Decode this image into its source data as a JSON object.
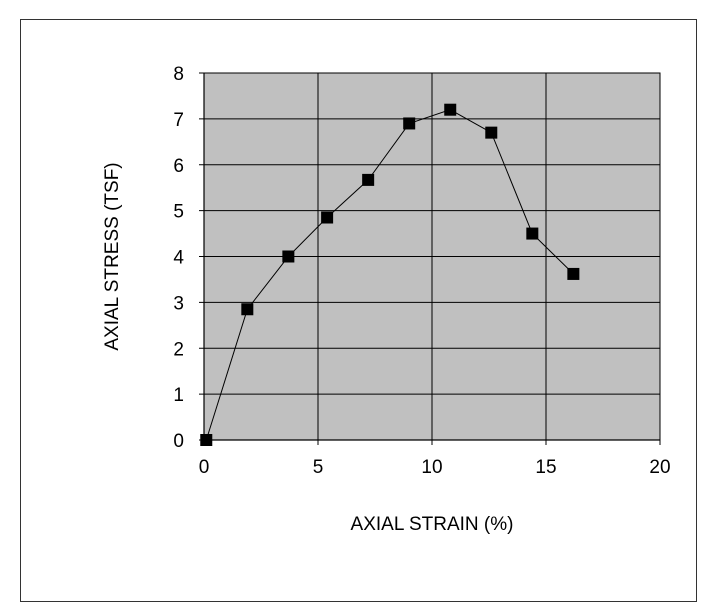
{
  "chart_data": {
    "type": "scatter",
    "mode": "line+markers",
    "xlabel": "AXIAL STRAIN (%)",
    "ylabel": "AXIAL STRESS (TSF)",
    "xlim": [
      0,
      20
    ],
    "ylim": [
      0,
      8
    ],
    "xticks": [
      "0",
      "5",
      "10",
      "15",
      "20"
    ],
    "yticks": [
      "0",
      "1",
      "2",
      "3",
      "4",
      "5",
      "6",
      "7",
      "8"
    ],
    "grid": true,
    "legend": "none",
    "plot_background": "#c0c0c0",
    "marker_color": "#000000",
    "line_color": "#000000",
    "series": [
      {
        "x": [
          0.1,
          1.9,
          3.7,
          5.4,
          7.2,
          9.0,
          10.8,
          12.6,
          14.4,
          16.2
        ],
        "y": [
          0.0,
          2.85,
          4.0,
          4.85,
          5.67,
          6.9,
          7.2,
          6.7,
          4.5,
          3.62
        ]
      }
    ]
  }
}
